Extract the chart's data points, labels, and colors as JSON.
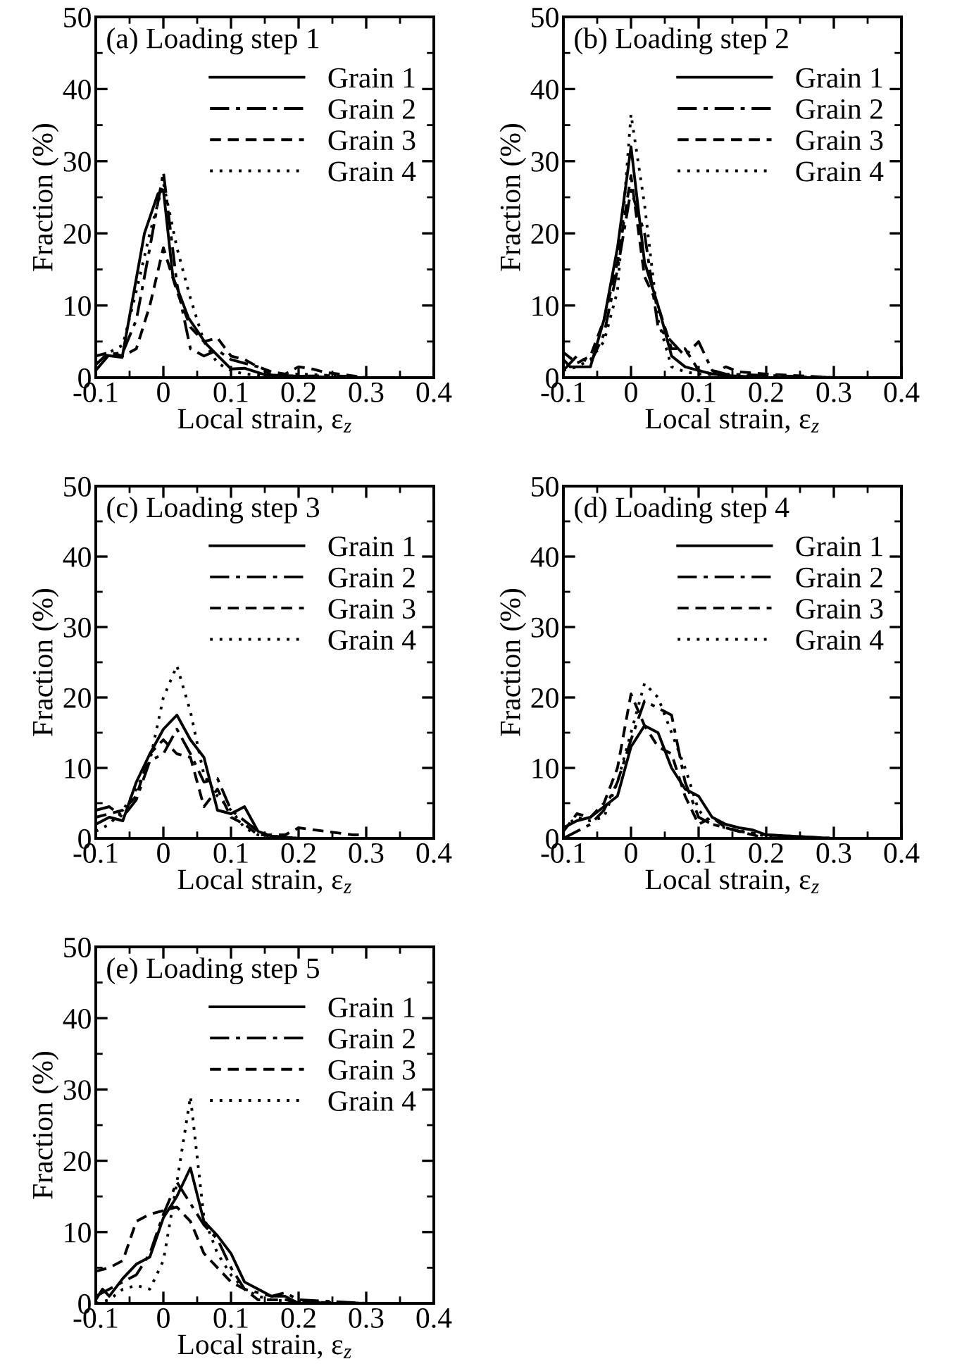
{
  "chart_data": [
    {
      "type": "line",
      "title": "(a) Loading step 1",
      "xlabel": "Local strain, ε$_{z}$",
      "ylabel": "Fraction (%)",
      "xlim": [
        -0.1,
        0.4
      ],
      "xticks": [
        -0.1,
        0,
        0.1,
        0.2,
        0.3,
        0.4
      ],
      "ylim": [
        0,
        50
      ],
      "yticks": [
        0,
        10,
        20,
        30,
        40,
        50
      ],
      "legend": "top right",
      "grid": false,
      "series": [
        {
          "name": "Grain 1",
          "color": "#000000",
          "line_style": "solid",
          "x": [
            -0.1,
            -0.085,
            -0.061,
            -0.028,
            -0.008,
            0,
            0.014,
            0.037,
            0.063,
            0.1,
            0.12,
            0.15,
            0.2,
            0.26,
            0.3
          ],
          "values": [
            1.8,
            3.1,
            2.8,
            20,
            25.5,
            26,
            14,
            8.3,
            4.7,
            1.2,
            1.3,
            0.4,
            0.2,
            0,
            0
          ]
        },
        {
          "name": "Grain 2",
          "color": "#000000",
          "line_style": "dashdot",
          "x": [
            -0.1,
            -0.08,
            -0.06,
            -0.04,
            -0.02,
            0,
            0.02,
            0.04,
            0.06,
            0.08,
            0.1,
            0.12,
            0.14,
            0.16,
            0.2,
            0.25,
            0.3
          ],
          "values": [
            1,
            3.2,
            3.5,
            8,
            18,
            28.5,
            13,
            4,
            3,
            3.8,
            2.5,
            2,
            1.5,
            0.3,
            0.2,
            0.3,
            0
          ]
        },
        {
          "name": "Grain 3",
          "color": "#000000",
          "line_style": "dashed",
          "x": [
            -0.1,
            -0.08,
            -0.06,
            -0.04,
            -0.02,
            0,
            0.02,
            0.04,
            0.06,
            0.08,
            0.1,
            0.12,
            0.14,
            0.16,
            0.18,
            0.2,
            0.22,
            0.24,
            0.26,
            0.3
          ],
          "values": [
            3,
            3.5,
            3,
            4,
            10,
            18,
            12,
            7,
            5,
            5.5,
            3,
            2.5,
            1.5,
            0.8,
            0.5,
            1.5,
            1.2,
            0.7,
            0.5,
            0
          ]
        },
        {
          "name": "Grain 4",
          "color": "#000000",
          "line_style": "dotted",
          "x": [
            -0.1,
            -0.08,
            -0.06,
            -0.04,
            -0.02,
            0,
            0.02,
            0.04,
            0.06,
            0.08,
            0.1,
            0.12,
            0.16,
            0.2,
            0.25,
            0.3
          ],
          "values": [
            2,
            3.5,
            4.5,
            12,
            20,
            27,
            18,
            11,
            5,
            2,
            1,
            0.5,
            0.2,
            0.5,
            0.3,
            0
          ]
        }
      ]
    },
    {
      "type": "line",
      "title": "(b) Loading step 2",
      "xlabel": "Local strain, ε$_{z}$",
      "ylabel": "Fraction (%)",
      "xlim": [
        -0.1,
        0.4
      ],
      "xticks": [
        -0.1,
        0,
        0.1,
        0.2,
        0.3,
        0.4
      ],
      "ylim": [
        0,
        50
      ],
      "yticks": [
        0,
        10,
        20,
        30,
        40,
        50
      ],
      "legend": "top right",
      "grid": false,
      "series": [
        {
          "name": "Grain 1",
          "color": "#000000",
          "line_style": "solid",
          "x": [
            -0.1,
            -0.09,
            -0.06,
            -0.04,
            -0.02,
            0,
            0.02,
            0.04,
            0.06,
            0.08,
            0.1,
            0.12,
            0.14,
            0.2,
            0.3
          ],
          "values": [
            2.5,
            1.5,
            1.5,
            8,
            18,
            32,
            16,
            10,
            3,
            1.5,
            1,
            0.5,
            0.3,
            0,
            0
          ]
        },
        {
          "name": "Grain 2",
          "color": "#000000",
          "line_style": "dashdot",
          "x": [
            -0.1,
            -0.08,
            -0.06,
            -0.04,
            -0.02,
            0,
            0.02,
            0.04,
            0.06,
            0.08,
            0.1,
            0.12,
            0.14,
            0.2,
            0.3
          ],
          "values": [
            1,
            3,
            2,
            6,
            15,
            26,
            20,
            7,
            5,
            3,
            5,
            1,
            0.5,
            0.3,
            0
          ]
        },
        {
          "name": "Grain 3",
          "color": "#000000",
          "line_style": "dashed",
          "x": [
            -0.1,
            -0.08,
            -0.06,
            -0.04,
            -0.02,
            0,
            0.02,
            0.04,
            0.06,
            0.08,
            0.1,
            0.12,
            0.14,
            0.16,
            0.2,
            0.3
          ],
          "values": [
            3.5,
            2,
            3,
            8,
            16,
            28,
            14,
            10,
            4,
            4,
            1,
            0.5,
            1.5,
            0.8,
            0.5,
            0
          ]
        },
        {
          "name": "Grain 4",
          "color": "#000000",
          "line_style": "dotted",
          "x": [
            -0.1,
            -0.08,
            -0.06,
            -0.04,
            -0.02,
            0,
            0.02,
            0.04,
            0.06,
            0.08,
            0.1,
            0.14,
            0.2,
            0.3
          ],
          "values": [
            1,
            1.5,
            2.5,
            5,
            12,
            36.5,
            24,
            8,
            1.5,
            0.8,
            0.5,
            0.3,
            0.2,
            0
          ]
        }
      ]
    },
    {
      "type": "line",
      "title": "(c) Loading step 3",
      "xlabel": "Local strain, ε$_{z}$",
      "ylabel": "Fraction (%)",
      "xlim": [
        -0.1,
        0.4
      ],
      "xticks": [
        -0.1,
        0,
        0.1,
        0.2,
        0.3,
        0.4
      ],
      "ylim": [
        0,
        50
      ],
      "yticks": [
        0,
        10,
        20,
        30,
        40,
        50
      ],
      "legend": "top right",
      "grid": false,
      "series": [
        {
          "name": "Grain 1",
          "color": "#000000",
          "line_style": "solid",
          "x": [
            -0.1,
            -0.08,
            -0.06,
            -0.04,
            -0.02,
            0,
            0.02,
            0.04,
            0.06,
            0.08,
            0.1,
            0.12,
            0.14,
            0.16,
            0.2,
            0.3
          ],
          "values": [
            2,
            3,
            2.5,
            8,
            12,
            15.5,
            17.5,
            14,
            11.5,
            4,
            3.5,
            4.5,
            1,
            0.3,
            0,
            0
          ]
        },
        {
          "name": "Grain 2",
          "color": "#000000",
          "line_style": "dashdot",
          "x": [
            -0.1,
            -0.08,
            -0.06,
            -0.04,
            -0.02,
            0,
            0.02,
            0.04,
            0.06,
            0.08,
            0.1,
            0.12,
            0.14,
            0.16,
            0.2,
            0.3
          ],
          "values": [
            4,
            4.5,
            3,
            5.5,
            11,
            12,
            15.5,
            12,
            8,
            8.5,
            4,
            2.5,
            1,
            0.3,
            0,
            0
          ]
        },
        {
          "name": "Grain 3",
          "color": "#000000",
          "line_style": "dashed",
          "x": [
            -0.1,
            -0.08,
            -0.06,
            -0.04,
            -0.02,
            0,
            0.02,
            0.04,
            0.06,
            0.08,
            0.1,
            0.12,
            0.14,
            0.18,
            0.2,
            0.24,
            0.28,
            0.3
          ],
          "values": [
            3,
            3.5,
            4,
            6,
            12,
            14,
            12,
            11.5,
            4.5,
            7,
            3,
            2,
            0.5,
            0.5,
            1.5,
            1,
            0.5,
            0.5
          ]
        },
        {
          "name": "Grain 4",
          "color": "#000000",
          "line_style": "dotted",
          "x": [
            -0.1,
            -0.08,
            -0.06,
            -0.04,
            -0.02,
            0,
            0.02,
            0.04,
            0.06,
            0.08,
            0.1,
            0.12,
            0.14,
            0.2,
            0.3
          ],
          "values": [
            1,
            2,
            4,
            7,
            11,
            20,
            24.5,
            18,
            9,
            6,
            4,
            1.5,
            0.5,
            0,
            0
          ]
        }
      ]
    },
    {
      "type": "line",
      "title": "(d) Loading step 4",
      "xlabel": "Local strain, ε$_{z}$",
      "ylabel": "Fraction (%)",
      "xlim": [
        -0.1,
        0.4
      ],
      "xticks": [
        -0.1,
        0,
        0.1,
        0.2,
        0.3,
        0.4
      ],
      "ylim": [
        0,
        50
      ],
      "yticks": [
        0,
        10,
        20,
        30,
        40,
        50
      ],
      "legend": "top right",
      "grid": false,
      "series": [
        {
          "name": "Grain 1",
          "color": "#000000",
          "line_style": "solid",
          "x": [
            -0.1,
            -0.08,
            -0.06,
            -0.04,
            -0.02,
            0,
            0.02,
            0.04,
            0.06,
            0.08,
            0.1,
            0.12,
            0.14,
            0.16,
            0.18,
            0.2,
            0.24,
            0.3
          ],
          "values": [
            1.5,
            2.5,
            3,
            4.5,
            6,
            13,
            16,
            15,
            10,
            7,
            6,
            3,
            2,
            1.5,
            1.2,
            0.5,
            0.3,
            0
          ]
        },
        {
          "name": "Grain 2",
          "color": "#000000",
          "line_style": "dashdot",
          "x": [
            -0.1,
            -0.08,
            -0.06,
            -0.04,
            -0.02,
            0,
            0.02,
            0.04,
            0.06,
            0.08,
            0.1,
            0.12,
            0.14,
            0.16,
            0.2,
            0.3
          ],
          "values": [
            0,
            1,
            2,
            4,
            8,
            14,
            19.5,
            18.5,
            17.5,
            8,
            3,
            2,
            1.5,
            1,
            0.5,
            0
          ]
        },
        {
          "name": "Grain 3",
          "color": "#000000",
          "line_style": "dashed",
          "x": [
            -0.1,
            -0.08,
            -0.06,
            -0.04,
            -0.02,
            0,
            0.02,
            0.04,
            0.06,
            0.08,
            0.1,
            0.12,
            0.14,
            0.16,
            0.2,
            0.3
          ],
          "values": [
            1,
            3.5,
            3,
            5,
            10,
            20.5,
            16,
            13,
            12,
            6,
            2,
            3,
            1.5,
            1,
            0,
            0
          ]
        },
        {
          "name": "Grain 4",
          "color": "#000000",
          "line_style": "dotted",
          "x": [
            -0.1,
            -0.08,
            -0.06,
            -0.04,
            -0.02,
            0,
            0.02,
            0.04,
            0.06,
            0.08,
            0.1,
            0.12,
            0.14,
            0.2,
            0.3
          ],
          "values": [
            1.5,
            3,
            2.5,
            3,
            8,
            15,
            22,
            20,
            15,
            10,
            4,
            2,
            1.5,
            0.3,
            0
          ]
        }
      ]
    },
    {
      "type": "line",
      "title": "(e) Loading step 5",
      "xlabel": "Local strain, ε$_{z}$",
      "ylabel": "Fraction (%)",
      "xlim": [
        -0.1,
        0.4
      ],
      "xticks": [
        -0.1,
        0,
        0.1,
        0.2,
        0.3,
        0.4
      ],
      "ylim": [
        0,
        50
      ],
      "yticks": [
        0,
        10,
        20,
        30,
        40,
        50
      ],
      "legend": "top right",
      "grid": false,
      "series": [
        {
          "name": "Grain 1",
          "color": "#000000",
          "line_style": "solid",
          "x": [
            -0.1,
            -0.09,
            -0.08,
            -0.06,
            -0.04,
            -0.02,
            0,
            0.02,
            0.04,
            0.06,
            0.08,
            0.1,
            0.12,
            0.14,
            0.16,
            0.18,
            0.2,
            0.3
          ],
          "values": [
            0.5,
            2,
            1,
            3.5,
            5.5,
            6.5,
            12,
            15,
            19,
            11.5,
            9.5,
            7,
            3,
            2,
            1,
            1,
            0,
            0
          ]
        },
        {
          "name": "Grain 2",
          "color": "#000000",
          "line_style": "dashdot",
          "x": [
            -0.1,
            -0.08,
            -0.06,
            -0.04,
            -0.02,
            0,
            0.02,
            0.04,
            0.06,
            0.08,
            0.1,
            0.12,
            0.14,
            0.16,
            0.18,
            0.2,
            0.3
          ],
          "values": [
            1,
            2,
            3,
            4,
            7,
            12.5,
            17,
            14,
            11,
            9,
            5,
            2,
            1.5,
            1,
            1.5,
            0.5,
            0
          ]
        },
        {
          "name": "Grain 3",
          "color": "#000000",
          "line_style": "dashed",
          "x": [
            -0.1,
            -0.08,
            -0.06,
            -0.04,
            -0.02,
            0,
            0.02,
            0.04,
            0.06,
            0.08,
            0.1,
            0.12,
            0.14,
            0.18,
            0.2,
            0.3
          ],
          "values": [
            4.5,
            5,
            6,
            11.5,
            12.5,
            13,
            13.5,
            11.5,
            7,
            5,
            3,
            2,
            0.5,
            0.5,
            0.2,
            0
          ]
        },
        {
          "name": "Grain 4",
          "color": "#000000",
          "line_style": "dotted",
          "x": [
            -0.1,
            -0.08,
            -0.06,
            -0.04,
            -0.02,
            0,
            0.02,
            0.04,
            0.06,
            0.08,
            0.1,
            0.12,
            0.14,
            0.16,
            0.2,
            0.3
          ],
          "values": [
            0,
            0.5,
            2,
            2.5,
            2,
            6,
            17,
            29,
            12,
            7,
            4,
            2,
            1,
            0.5,
            0.2,
            0
          ]
        }
      ]
    }
  ]
}
